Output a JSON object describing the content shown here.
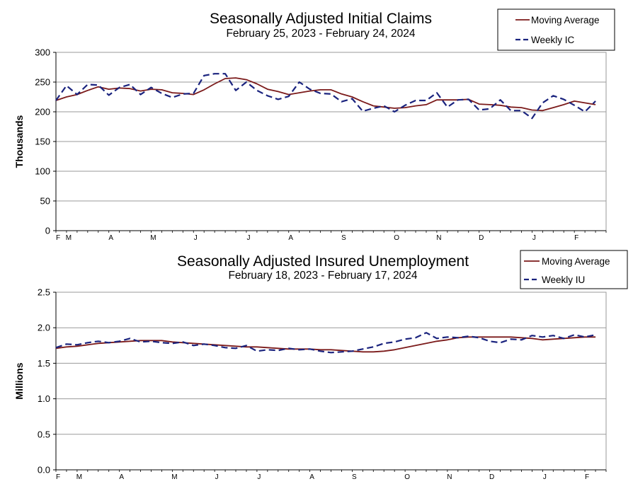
{
  "chart_data": [
    {
      "type": "line",
      "title": "Seasonally Adjusted Initial Claims",
      "subtitle": "February 25, 2023 - February 24, 2024",
      "ylabel": "Thousands",
      "xlabel": "",
      "ylim": [
        0,
        300
      ],
      "yticks": [
        "0",
        "50",
        "100",
        "150",
        "200",
        "250",
        "300"
      ],
      "ytick_values": [
        0,
        50,
        100,
        150,
        200,
        250,
        300
      ],
      "xticks": [
        {
          "label": "F",
          "week": 0
        },
        {
          "label": "M",
          "week": 1
        },
        {
          "label": "A",
          "week": 5
        },
        {
          "label": "M",
          "week": 9
        },
        {
          "label": "J",
          "week": 13
        },
        {
          "label": "J",
          "week": 18
        },
        {
          "label": "A",
          "week": 22
        },
        {
          "label": "S",
          "week": 27
        },
        {
          "label": "O",
          "week": 32
        },
        {
          "label": "N",
          "week": 36
        },
        {
          "label": "D",
          "week": 40
        },
        {
          "label": "J",
          "week": 45
        },
        {
          "label": "F",
          "week": 49
        }
      ],
      "x_range": [
        0,
        52
      ],
      "grid": true,
      "legend": "top-right",
      "series": [
        {
          "name": "Moving Average",
          "color": "#7b1a1a",
          "style": "solid",
          "values": [
            219,
            225,
            229,
            236,
            242,
            238,
            240,
            239,
            235,
            238,
            237,
            232,
            231,
            229,
            237,
            247,
            256,
            257,
            254,
            247,
            238,
            234,
            229,
            232,
            235,
            237,
            237,
            230,
            225,
            217,
            210,
            208,
            206,
            207,
            210,
            212,
            220,
            220,
            220,
            221,
            213,
            212,
            211,
            208,
            207,
            203,
            202,
            207,
            212,
            218,
            215,
            212
          ]
        },
        {
          "name": "Weekly IC",
          "color": "#1a237e",
          "style": "dashed",
          "values": [
            219,
            244,
            229,
            246,
            245,
            228,
            241,
            246,
            229,
            241,
            231,
            224,
            230,
            231,
            261,
            264,
            264,
            236,
            250,
            236,
            227,
            221,
            226,
            250,
            238,
            231,
            230,
            217,
            222,
            201,
            206,
            210,
            200,
            211,
            219,
            219,
            232,
            208,
            220,
            221,
            203,
            205,
            220,
            202,
            202,
            189,
            215,
            227,
            221,
            211,
            200,
            218
          ]
        }
      ]
    },
    {
      "type": "line",
      "title": "Seasonally Adjusted Insured Unemployment",
      "subtitle": "February 18, 2023 - February 17, 2024",
      "ylabel": "Millions",
      "xlabel": "",
      "ylim": [
        0,
        2.5
      ],
      "yticks": [
        "0.0",
        "0.5",
        "1.0",
        "1.5",
        "2.0",
        "2.5"
      ],
      "ytick_values": [
        0,
        0.5,
        1.0,
        1.5,
        2.0,
        2.5
      ],
      "xticks": [
        {
          "label": "F",
          "week": 0
        },
        {
          "label": "M",
          "week": 2
        },
        {
          "label": "A",
          "week": 6
        },
        {
          "label": "M",
          "week": 11
        },
        {
          "label": "J",
          "week": 15
        },
        {
          "label": "J",
          "week": 19
        },
        {
          "label": "A",
          "week": 24
        },
        {
          "label": "S",
          "week": 28
        },
        {
          "label": "O",
          "week": 33
        },
        {
          "label": "N",
          "week": 37
        },
        {
          "label": "D",
          "week": 41
        },
        {
          "label": "J",
          "week": 46
        },
        {
          "label": "F",
          "week": 50
        }
      ],
      "x_range": [
        0,
        52
      ],
      "grid": true,
      "legend": "top-right",
      "series": [
        {
          "name": "Moving Average",
          "color": "#7b1a1a",
          "style": "solid",
          "values": [
            1.71,
            1.73,
            1.74,
            1.76,
            1.78,
            1.79,
            1.8,
            1.81,
            1.82,
            1.82,
            1.82,
            1.8,
            1.79,
            1.78,
            1.77,
            1.76,
            1.75,
            1.74,
            1.73,
            1.73,
            1.72,
            1.71,
            1.7,
            1.7,
            1.7,
            1.69,
            1.69,
            1.68,
            1.67,
            1.66,
            1.66,
            1.67,
            1.69,
            1.72,
            1.75,
            1.78,
            1.81,
            1.83,
            1.86,
            1.87,
            1.87,
            1.87,
            1.87,
            1.87,
            1.86,
            1.85,
            1.83,
            1.84,
            1.85,
            1.86,
            1.87,
            1.87
          ]
        },
        {
          "name": "Weekly IU",
          "color": "#1a237e",
          "style": "dashed",
          "values": [
            1.72,
            1.77,
            1.76,
            1.79,
            1.81,
            1.79,
            1.81,
            1.85,
            1.8,
            1.81,
            1.79,
            1.78,
            1.8,
            1.75,
            1.77,
            1.75,
            1.72,
            1.71,
            1.75,
            1.67,
            1.69,
            1.68,
            1.71,
            1.69,
            1.7,
            1.67,
            1.65,
            1.66,
            1.67,
            1.7,
            1.73,
            1.78,
            1.8,
            1.84,
            1.86,
            1.93,
            1.85,
            1.87,
            1.86,
            1.88,
            1.86,
            1.81,
            1.79,
            1.84,
            1.83,
            1.89,
            1.87,
            1.89,
            1.85,
            1.9,
            1.87,
            1.9
          ]
        }
      ]
    }
  ]
}
